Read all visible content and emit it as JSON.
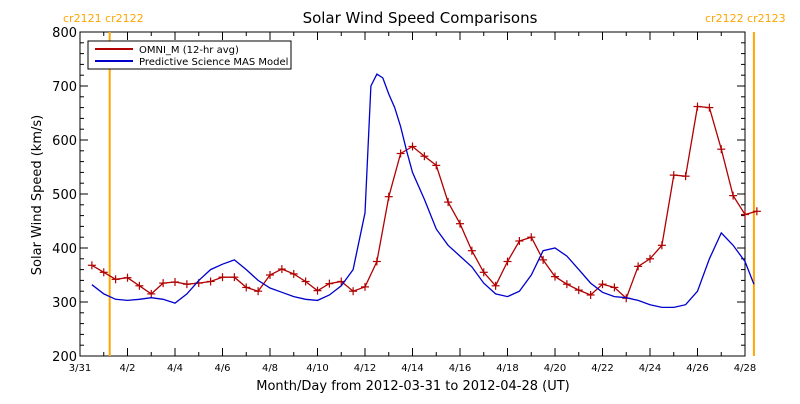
{
  "chart_data": {
    "type": "line",
    "title": "Solar Wind Speed Comparisons",
    "xlabel": "Month/Day from 2012-03-31 to 2012-04-28 (UT)",
    "ylabel": "Solar Wind Speed (km/s)",
    "xlim": [
      "2012-03-31",
      "2012-04-28"
    ],
    "ylim": [
      200,
      800
    ],
    "y_ticks": [
      200,
      300,
      400,
      500,
      600,
      700,
      800
    ],
    "x_ticks": [
      {
        "date": "2012-03-31",
        "label": "3/31"
      },
      {
        "date": "2012-04-02",
        "label": "4/2"
      },
      {
        "date": "2012-04-04",
        "label": "4/4"
      },
      {
        "date": "2012-04-06",
        "label": "4/6"
      },
      {
        "date": "2012-04-08",
        "label": "4/8"
      },
      {
        "date": "2012-04-10",
        "label": "4/10"
      },
      {
        "date": "2012-04-12",
        "label": "4/12"
      },
      {
        "date": "2012-04-14",
        "label": "4/14"
      },
      {
        "date": "2012-04-16",
        "label": "4/16"
      },
      {
        "date": "2012-04-18",
        "label": "4/18"
      },
      {
        "date": "2012-04-20",
        "label": "4/20"
      },
      {
        "date": "2012-04-22",
        "label": "4/22"
      },
      {
        "date": "2012-04-24",
        "label": "4/24"
      },
      {
        "date": "2012-04-26",
        "label": "4/26"
      },
      {
        "date": "2012-04-28",
        "label": "4/28"
      }
    ],
    "legend_position": "top-left",
    "grid": false,
    "vlines": [
      {
        "date": "2012-04-01 06:00",
        "label": "cr2121  cr2122",
        "color": "#FFA500"
      },
      {
        "date": "2012-04-28 09:00",
        "label": "cr2122  cr2123",
        "color": "#FFA500"
      }
    ],
    "series": [
      {
        "name": "OMNI_M (12-hr avg)",
        "color": "#B00000",
        "marker": "+",
        "x": [
          "2012-03-31 12:00",
          "2012-04-01 00:00",
          "2012-04-01 12:00",
          "2012-04-02 00:00",
          "2012-04-02 12:00",
          "2012-04-03 00:00",
          "2012-04-03 12:00",
          "2012-04-04 00:00",
          "2012-04-04 12:00",
          "2012-04-05 00:00",
          "2012-04-05 12:00",
          "2012-04-06 00:00",
          "2012-04-06 12:00",
          "2012-04-07 00:00",
          "2012-04-07 12:00",
          "2012-04-08 00:00",
          "2012-04-08 12:00",
          "2012-04-09 00:00",
          "2012-04-09 12:00",
          "2012-04-10 00:00",
          "2012-04-10 12:00",
          "2012-04-11 00:00",
          "2012-04-11 12:00",
          "2012-04-12 00:00",
          "2012-04-12 12:00",
          "2012-04-13 00:00",
          "2012-04-13 12:00",
          "2012-04-14 00:00",
          "2012-04-14 12:00",
          "2012-04-15 00:00",
          "2012-04-15 12:00",
          "2012-04-16 00:00",
          "2012-04-16 12:00",
          "2012-04-17 00:00",
          "2012-04-17 12:00",
          "2012-04-18 00:00",
          "2012-04-18 12:00",
          "2012-04-19 00:00",
          "2012-04-19 12:00",
          "2012-04-20 00:00",
          "2012-04-20 12:00",
          "2012-04-21 00:00",
          "2012-04-21 12:00",
          "2012-04-22 00:00",
          "2012-04-22 12:00",
          "2012-04-23 00:00",
          "2012-04-23 12:00",
          "2012-04-24 00:00",
          "2012-04-24 12:00",
          "2012-04-25 00:00",
          "2012-04-25 12:00",
          "2012-04-26 00:00",
          "2012-04-26 12:00",
          "2012-04-27 00:00",
          "2012-04-27 12:00",
          "2012-04-28 00:00",
          "2012-04-28 12:00"
        ],
        "values": [
          368,
          355,
          342,
          345,
          330,
          315,
          335,
          337,
          333,
          335,
          338,
          346,
          346,
          327,
          320,
          350,
          361,
          352,
          338,
          321,
          334,
          338,
          320,
          328,
          375,
          495,
          575,
          588,
          570,
          553,
          485,
          445,
          395,
          355,
          330,
          375,
          413,
          420,
          378,
          347,
          333,
          322,
          313,
          333,
          327,
          307,
          366,
          380,
          405,
          535,
          533,
          662,
          660,
          583,
          497,
          462,
          468
        ]
      },
      {
        "name": "Predictive Science MAS Model",
        "color": "#0000CC",
        "marker": "none",
        "x": [
          "2012-03-31 12:00",
          "2012-04-01 00:00",
          "2012-04-01 12:00",
          "2012-04-02 00:00",
          "2012-04-02 12:00",
          "2012-04-03 00:00",
          "2012-04-03 12:00",
          "2012-04-04 00:00",
          "2012-04-04 12:00",
          "2012-04-05 00:00",
          "2012-04-05 12:00",
          "2012-04-06 00:00",
          "2012-04-06 12:00",
          "2012-04-07 00:00",
          "2012-04-07 12:00",
          "2012-04-08 00:00",
          "2012-04-08 12:00",
          "2012-04-09 00:00",
          "2012-04-09 12:00",
          "2012-04-10 00:00",
          "2012-04-10 12:00",
          "2012-04-11 00:00",
          "2012-04-11 12:00",
          "2012-04-12 00:00",
          "2012-04-12 06:00",
          "2012-04-12 12:00",
          "2012-04-12 18:00",
          "2012-04-13 00:00",
          "2012-04-13 06:00",
          "2012-04-13 12:00",
          "2012-04-13 18:00",
          "2012-04-14 00:00",
          "2012-04-14 12:00",
          "2012-04-15 00:00",
          "2012-04-15 12:00",
          "2012-04-16 00:00",
          "2012-04-16 12:00",
          "2012-04-17 00:00",
          "2012-04-17 12:00",
          "2012-04-18 00:00",
          "2012-04-18 12:00",
          "2012-04-19 00:00",
          "2012-04-19 12:00",
          "2012-04-20 00:00",
          "2012-04-20 12:00",
          "2012-04-21 00:00",
          "2012-04-21 12:00",
          "2012-04-22 00:00",
          "2012-04-22 12:00",
          "2012-04-23 00:00",
          "2012-04-23 12:00",
          "2012-04-24 00:00",
          "2012-04-24 12:00",
          "2012-04-25 00:00",
          "2012-04-25 12:00",
          "2012-04-26 00:00",
          "2012-04-26 12:00",
          "2012-04-27 00:00",
          "2012-04-27 12:00",
          "2012-04-28 00:00",
          "2012-04-28 09:00"
        ],
        "values": [
          332,
          315,
          305,
          303,
          305,
          308,
          305,
          298,
          315,
          340,
          360,
          370,
          378,
          360,
          340,
          326,
          318,
          310,
          305,
          303,
          313,
          330,
          360,
          465,
          700,
          722,
          715,
          685,
          660,
          625,
          580,
          540,
          490,
          435,
          405,
          385,
          365,
          335,
          315,
          310,
          320,
          350,
          395,
          400,
          385,
          360,
          335,
          318,
          310,
          308,
          303,
          295,
          290,
          290,
          295,
          320,
          380,
          428,
          405,
          375,
          333
        ]
      }
    ]
  }
}
